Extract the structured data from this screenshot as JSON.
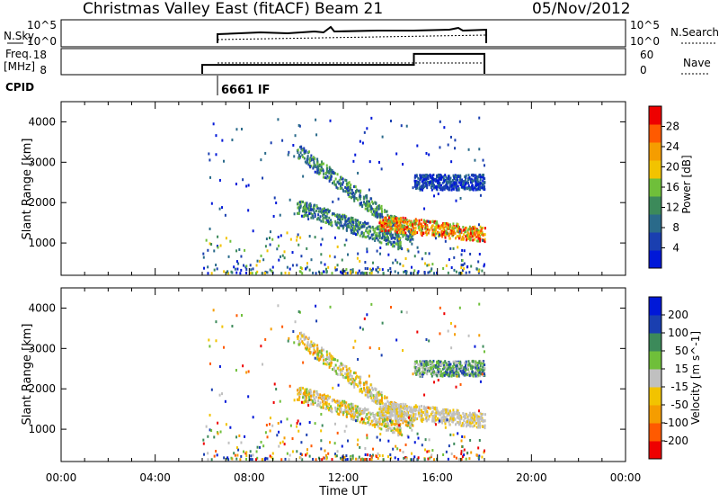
{
  "header": {
    "title": "Christmas Valley East (fitACF)",
    "beam": "Beam 21",
    "date": "05/Nov/2012"
  },
  "strips": {
    "nsky": {
      "left_label": "N.Sky",
      "left_ticks": [
        "10^5",
        "10^0"
      ],
      "right_ticks": [
        "10^5",
        "10^0"
      ],
      "right_label": "N.Search"
    },
    "freq": {
      "left_label_line1": "Freq.",
      "left_label_line2": "[MHz]",
      "left_ticks": [
        "18",
        "8"
      ],
      "right_ticks": [
        "60",
        "0"
      ],
      "right_label": "Nave",
      "freq_steps": [
        {
          "start_hour": 6.0,
          "end_hour": 15.0,
          "level": 0.38
        },
        {
          "start_hour": 15.0,
          "end_hour": 18.0,
          "level": 0.85
        }
      ]
    },
    "cpid": {
      "label": "CPID",
      "mode": "6661 IF",
      "start_hour": 6.0
    }
  },
  "colors": {
    "power_bar": [
      "#0018d8",
      "#1a3fb0",
      "#2a6a8a",
      "#3c8a5a",
      "#6fbf3a",
      "#f2c300",
      "#f59d00",
      "#ff5a00",
      "#ee0000"
    ],
    "velocity_bar": [
      "#ee0000",
      "#ff5a00",
      "#f59d00",
      "#f2c300",
      "#c0c0c0",
      "#6fbf3a",
      "#3c8a5a",
      "#1a3fb0",
      "#0018d8"
    ]
  },
  "chart_data": [
    {
      "type": "heatmap",
      "name": "Power",
      "ylabel": "Slant Range [km]",
      "colorbar_label": "Power [dB]",
      "colorbar_ticks": [
        "4",
        "8",
        "12",
        "16",
        "20",
        "24",
        "28"
      ],
      "xlim": [
        "00:00",
        "00:00"
      ],
      "ylim": [
        200,
        4500
      ],
      "yticks": [
        1000,
        2000,
        3000,
        4000
      ],
      "data_window": [
        "06:00",
        "18:00"
      ],
      "echo_bands": [
        {
          "x": [
            "10:00",
            "15:00"
          ],
          "range_km": [
            3300,
            1100
          ],
          "level": "mid"
        },
        {
          "x": [
            "10:00",
            "14:30"
          ],
          "range_km": [
            1900,
            1000
          ],
          "level": "mid"
        },
        {
          "x": [
            "13:30",
            "18:00"
          ],
          "range_km": [
            1500,
            1200
          ],
          "level": "high"
        },
        {
          "x": [
            "15:00",
            "18:00"
          ],
          "range_km": [
            2500,
            2500
          ],
          "level": "low"
        }
      ]
    },
    {
      "type": "heatmap",
      "name": "Velocity",
      "xlabel": "Time UT",
      "ylabel": "Slant Range [km]",
      "colorbar_label": "Velocity [m s^-1]",
      "colorbar_ticks": [
        "200",
        "100",
        "50",
        "15",
        "-15",
        "-50",
        "-100",
        "-200"
      ],
      "xticks": [
        "00:00",
        "04:00",
        "08:00",
        "12:00",
        "16:00",
        "20:00",
        "00:00"
      ],
      "ylim": [
        200,
        4500
      ],
      "yticks": [
        1000,
        2000,
        3000,
        4000
      ]
    }
  ]
}
